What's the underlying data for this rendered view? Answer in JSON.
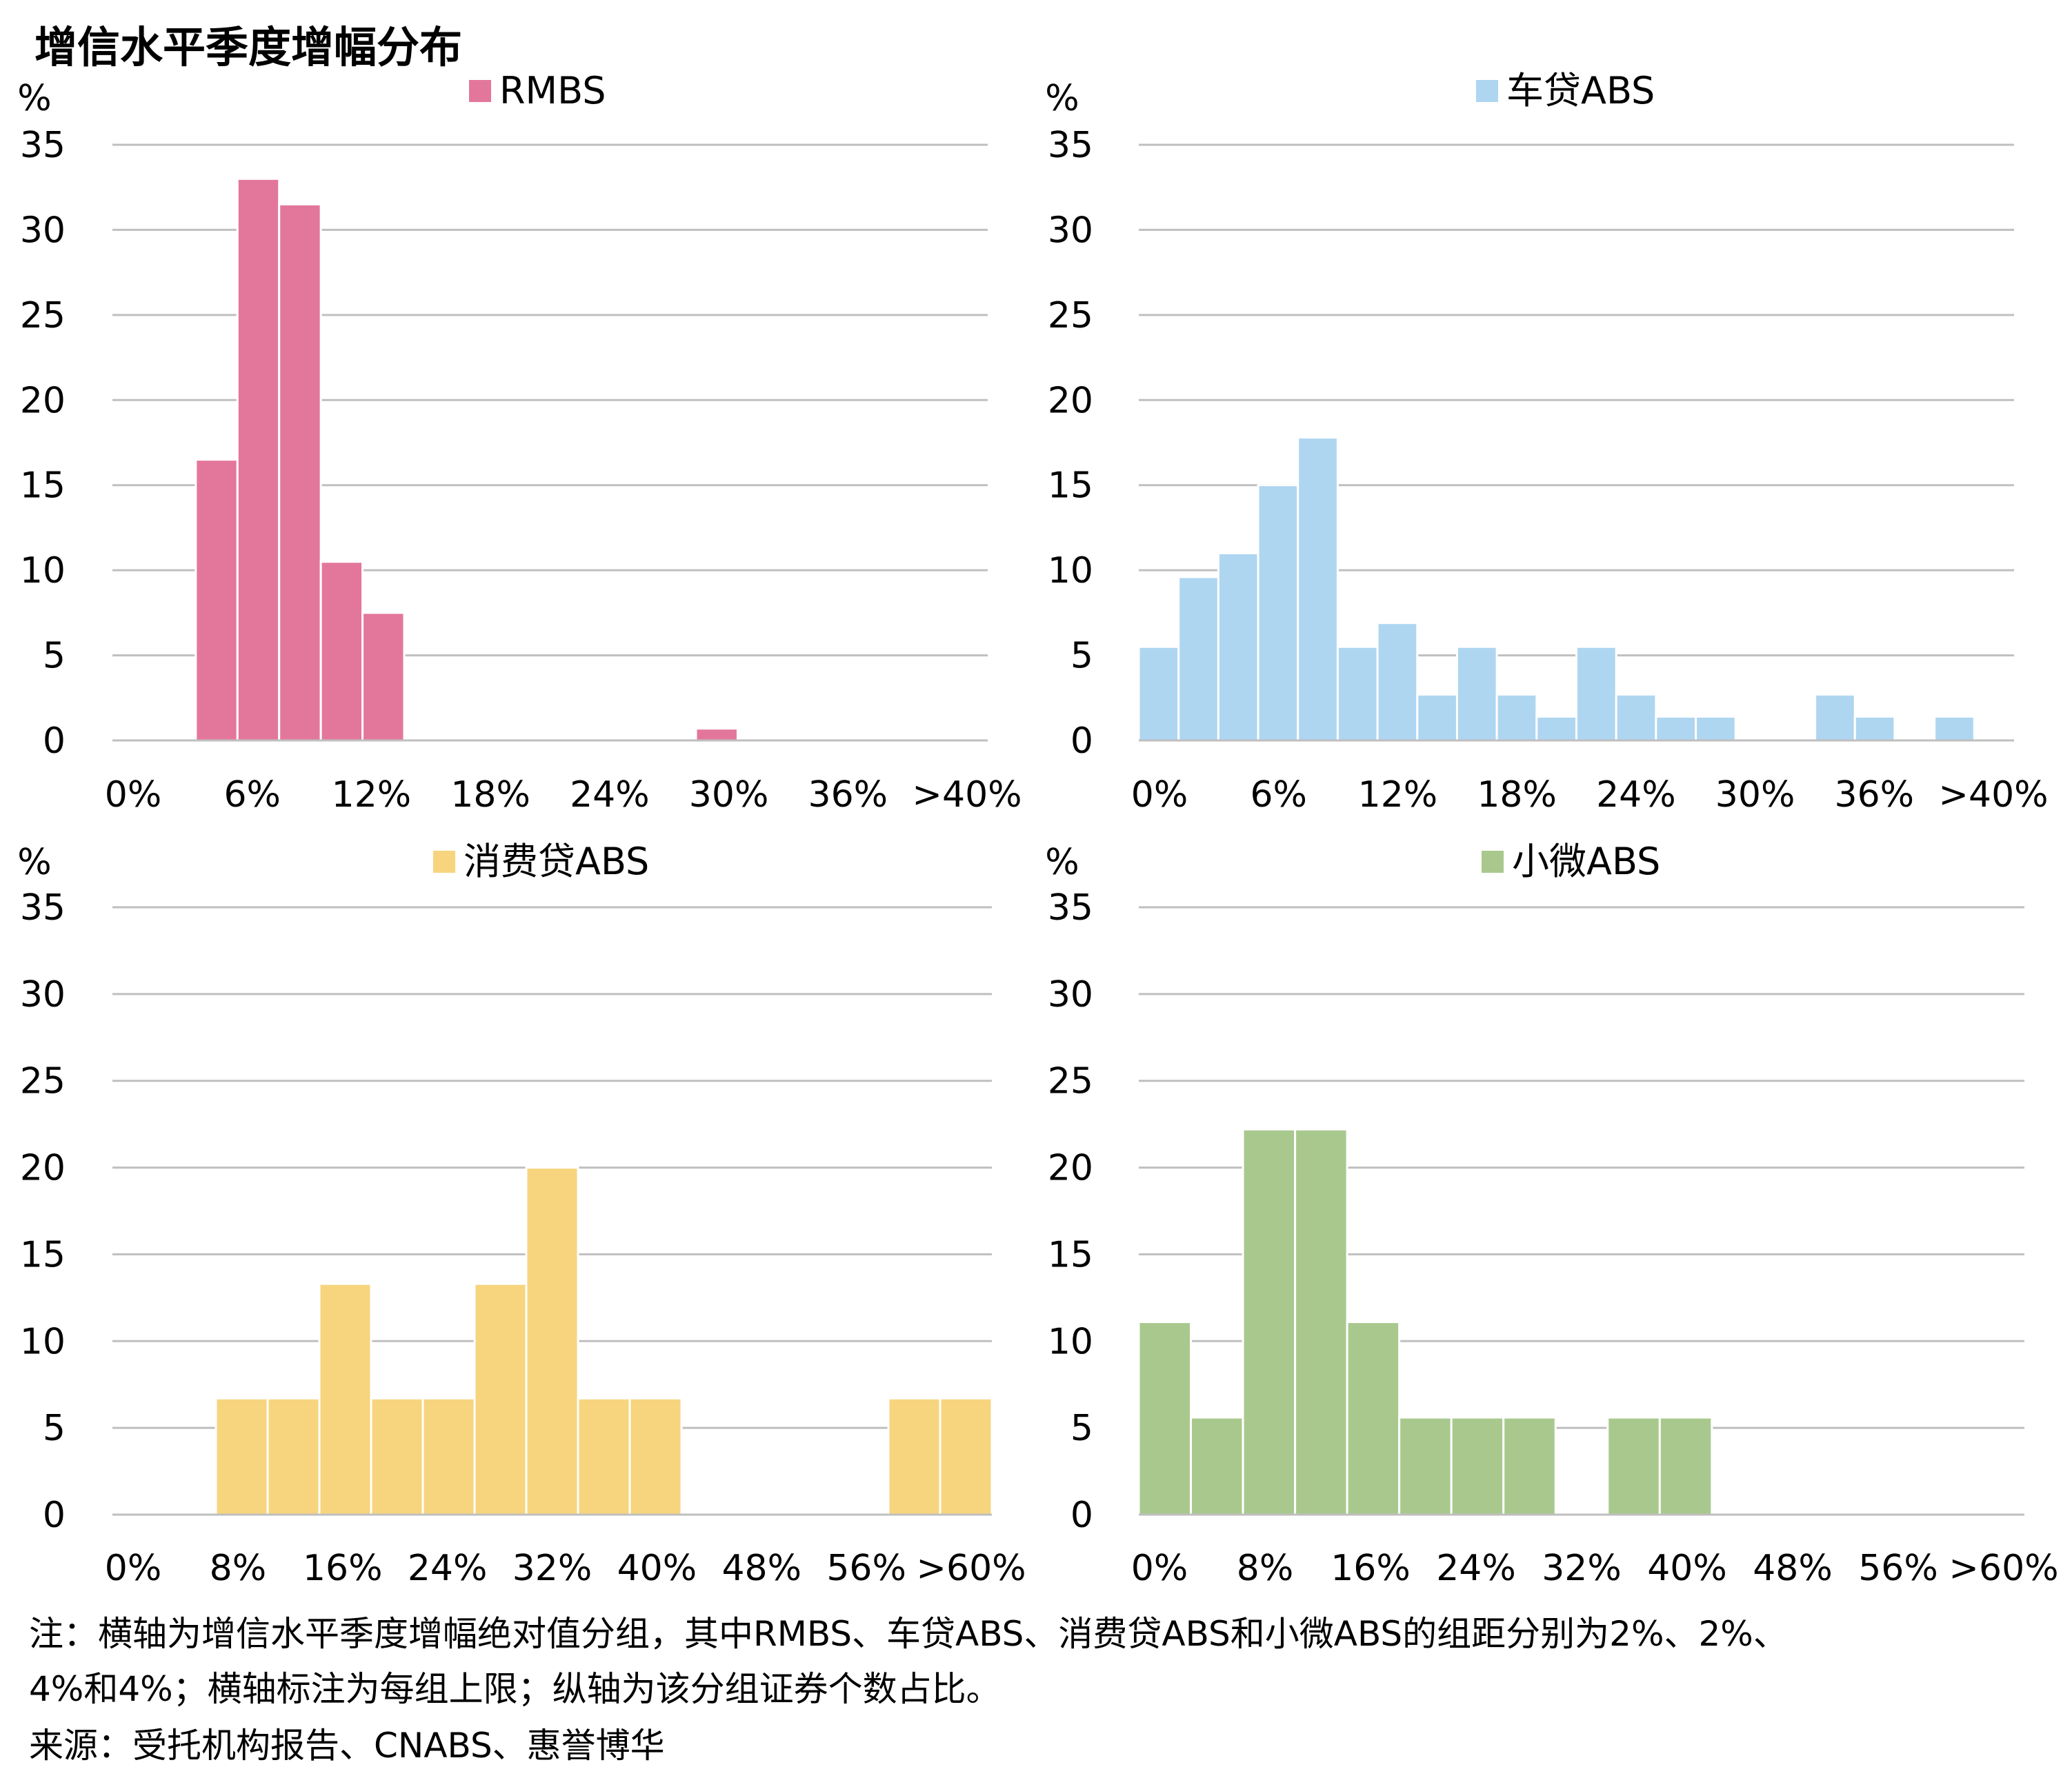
{
  "title": "增信水平季度增幅分布",
  "chart_data": [
    {
      "type": "bar",
      "legend": "RMBS",
      "color": "#E3779B",
      "y_unit": "%",
      "ylim": [
        0,
        35
      ],
      "yticks": [
        "0",
        "5",
        "10",
        "15",
        "20",
        "25",
        "30",
        "35"
      ],
      "xtick_labels": [
        "0%",
        "6%",
        "12%",
        "18%",
        "24%",
        "30%",
        "36%",
        ">40%"
      ],
      "bins": 21,
      "values": [
        0,
        0,
        16.5,
        33,
        31.5,
        10.5,
        7.5,
        0,
        0,
        0,
        0,
        0,
        0,
        0,
        0.7,
        0,
        0,
        0,
        0,
        0,
        0
      ]
    },
    {
      "type": "bar",
      "legend": "车贷ABS",
      "color": "#AED6F1",
      "y_unit": "%",
      "ylim": [
        0,
        35
      ],
      "yticks": [
        "0",
        "5",
        "10",
        "15",
        "20",
        "25",
        "30",
        "35"
      ],
      "xtick_labels": [
        "0%",
        "6%",
        "12%",
        "18%",
        "24%",
        "30%",
        "36%",
        ">40%"
      ],
      "bins": 22,
      "values": [
        5.5,
        9.6,
        11,
        15,
        17.8,
        5.5,
        6.9,
        2.7,
        5.5,
        2.7,
        1.4,
        5.5,
        2.7,
        1.4,
        1.4,
        0,
        0,
        2.7,
        1.4,
        0,
        1.4,
        0
      ]
    },
    {
      "type": "bar",
      "legend": "消费贷ABS",
      "color": "#F7D47E",
      "y_unit": "%",
      "ylim": [
        0,
        35
      ],
      "yticks": [
        "0",
        "5",
        "10",
        "15",
        "20",
        "25",
        "30",
        "35"
      ],
      "xtick_labels": [
        "0%",
        "8%",
        "16%",
        "24%",
        "32%",
        "40%",
        "48%",
        "56%",
        ">60%"
      ],
      "bins": 17,
      "values": [
        0,
        0,
        6.7,
        6.7,
        13.3,
        6.7,
        6.7,
        13.3,
        20,
        6.7,
        6.7,
        0,
        0,
        0,
        0,
        6.7,
        6.7
      ]
    },
    {
      "type": "bar",
      "legend": "小微ABS",
      "color": "#A9C88E",
      "y_unit": "%",
      "ylim": [
        0,
        35
      ],
      "yticks": [
        "0",
        "5",
        "10",
        "15",
        "20",
        "25",
        "30",
        "35"
      ],
      "xtick_labels": [
        "0%",
        "8%",
        "16%",
        "24%",
        "32%",
        "40%",
        "48%",
        "56%",
        ">60%"
      ],
      "bins": 17,
      "values": [
        11.1,
        5.6,
        22.2,
        22.2,
        11.1,
        5.6,
        5.6,
        5.6,
        0,
        5.6,
        5.6,
        0,
        0,
        0,
        0,
        0,
        0
      ]
    }
  ],
  "notes": {
    "line1": "注：横轴为增信水平季度增幅绝对值分组，其中RMBS、车贷ABS、消费贷ABS和小微ABS的组距分别为2%、2%、",
    "line2": "4%和4%；横轴标注为每组上限；纵轴为该分组证券个数占比。",
    "source": "来源：受托机构报告、CNABS、惠誉博华"
  }
}
